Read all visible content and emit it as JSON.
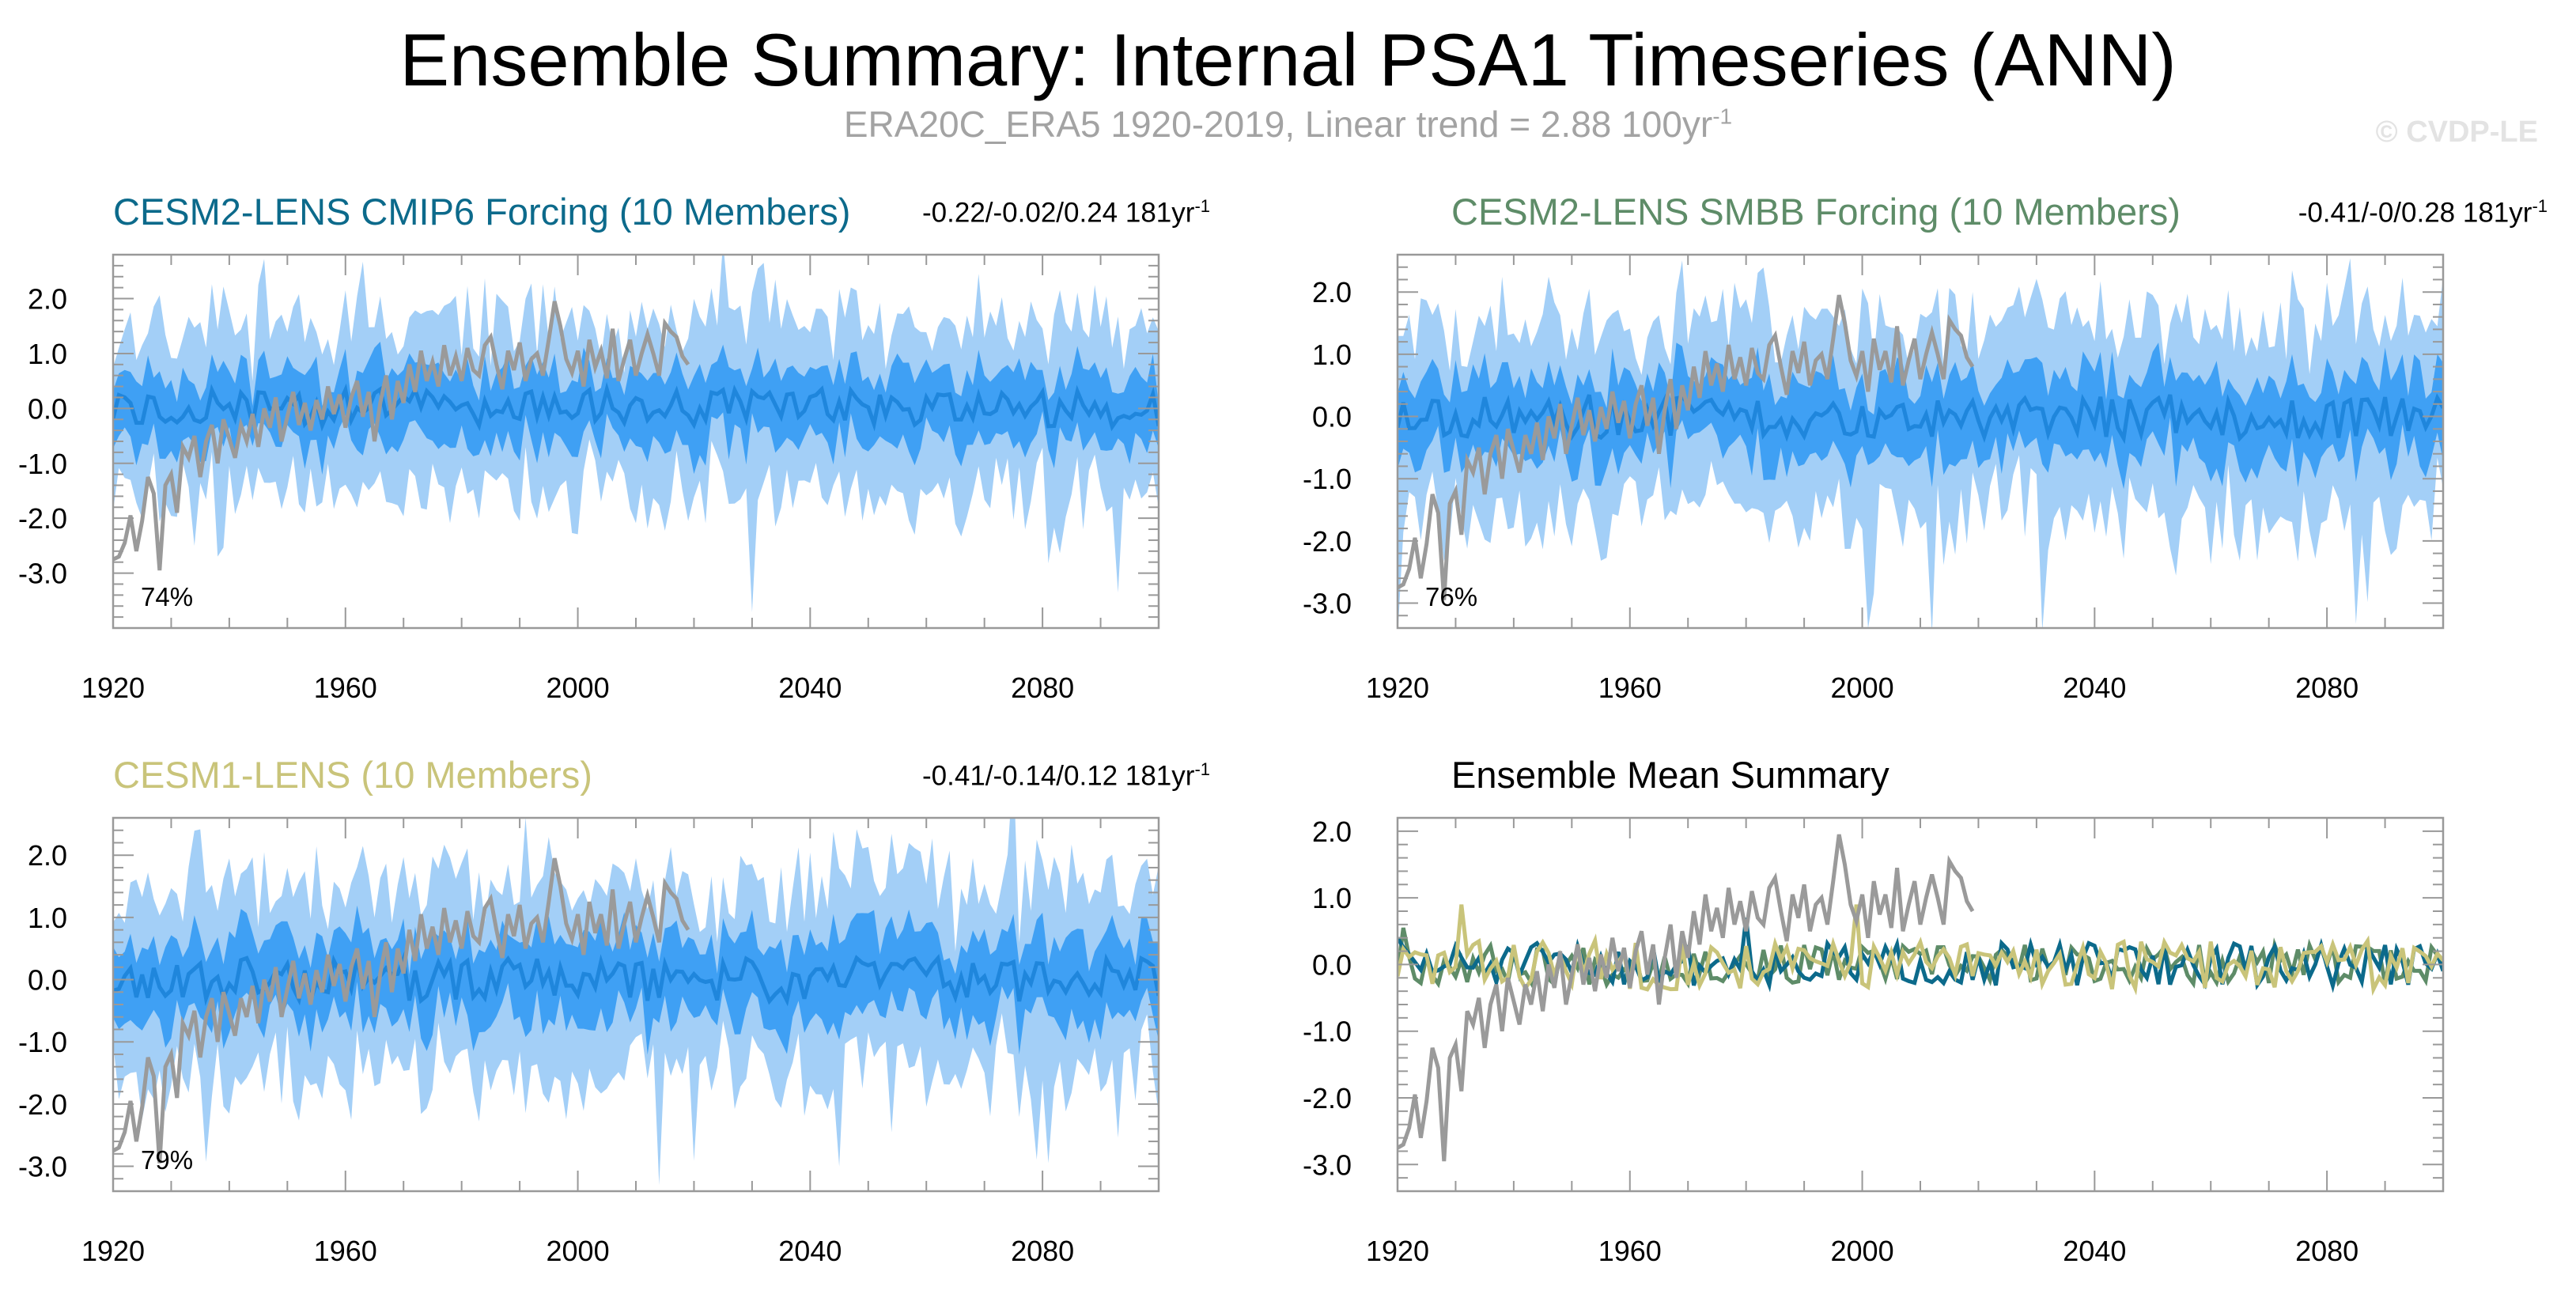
{
  "title": "Ensemble Summary: Internal PSA1 Timeseries (ANN)",
  "subtitle": "ERA20C_ERA5 1920-2019, Linear trend = 2.88 100yr",
  "subtitle_sup": "-1",
  "watermark": "© CVDP-LE",
  "colors": {
    "observation": "#9a9a9a",
    "range_outer": "#a3cff7",
    "range_inner": "#3fa0f4",
    "ensemble_mean": "#1f86dc",
    "cesm2_cmip6": "#0c6a8b",
    "cesm2_smbb": "#5e8c68",
    "cesm1": "#c9c47a"
  },
  "chart_data": [
    {
      "id": "cesm2-cmip6",
      "type": "area",
      "title": "CESM2-LENS CMIP6 Forcing (10 Members)",
      "title_color": "#0c6a8b",
      "stat": "-0.22/-0.02/0.24 181yr",
      "stat_sup": "-1",
      "percent_label": "74%",
      "x_range": [
        1920,
        2100
      ],
      "ylim": [
        -4.0,
        2.8
      ],
      "x_ticks": [
        "1920",
        "1960",
        "2000",
        "2040",
        "2080"
      ],
      "y_ticks": [
        "2.0",
        "1.0",
        "0.0",
        "-1.0",
        "-2.0",
        "-3.0"
      ],
      "series": [
        "range_outer: ensemble min-max envelope",
        "range_inner: 25th-75th percentile",
        "ensemble_mean",
        "observation (1920-2019)"
      ]
    },
    {
      "id": "cesm2-smbb",
      "type": "area",
      "title": "CESM2-LENS SMBB Forcing (10 Members)",
      "title_color": "#5e8c68",
      "stat": "-0.41/-0/0.28 181yr",
      "stat_sup": "-1",
      "percent_label": "76%",
      "x_range": [
        1920,
        2100
      ],
      "ylim": [
        -3.4,
        2.6
      ],
      "x_ticks": [
        "1920",
        "1960",
        "2000",
        "2040",
        "2080"
      ],
      "y_ticks": [
        "2.0",
        "1.0",
        "0.0",
        "-1.0",
        "-2.0",
        "-3.0"
      ],
      "series": [
        "range_outer: ensemble min-max envelope",
        "range_inner: 25th-75th percentile",
        "ensemble_mean",
        "observation (1920-2019)"
      ]
    },
    {
      "id": "cesm1",
      "type": "area",
      "title": "CESM1-LENS (10 Members)",
      "title_color": "#c9c47a",
      "stat": "-0.41/-0.14/0.12 181yr",
      "stat_sup": "-1",
      "percent_label": "79%",
      "x_range": [
        1920,
        2100
      ],
      "ylim": [
        -3.4,
        2.6
      ],
      "x_ticks": [
        "1920",
        "1960",
        "2000",
        "2040",
        "2080"
      ],
      "y_ticks": [
        "2.0",
        "1.0",
        "0.0",
        "-1.0",
        "-2.0",
        "-3.0"
      ],
      "series": [
        "range_outer: ensemble min-max envelope",
        "range_inner: 25th-75th percentile",
        "ensemble_mean",
        "observation (1920-2019)"
      ]
    },
    {
      "id": "ensemble-mean-summary",
      "type": "line",
      "title": "Ensemble Mean Summary",
      "title_color": "#000000",
      "x_range": [
        1920,
        2100
      ],
      "ylim": [
        -3.4,
        2.2
      ],
      "x_ticks": [
        "1920",
        "1960",
        "2000",
        "2040",
        "2080"
      ],
      "y_ticks": [
        "2.0",
        "1.0",
        "0.0",
        "-1.0",
        "-2.0",
        "-3.0"
      ],
      "series": [
        "observation",
        "cesm2_cmip6 ensemble mean",
        "cesm2_smbb ensemble mean",
        "cesm1 ensemble mean"
      ]
    }
  ],
  "observation_series": {
    "start_year": 1920,
    "values": [
      -2.75,
      -2.7,
      -2.45,
      -1.95,
      -2.6,
      -2.05,
      -1.25,
      -1.55,
      -2.95,
      -1.4,
      -1.2,
      -1.9,
      -0.7,
      -0.9,
      -0.5,
      -1.25,
      -0.6,
      -0.3,
      -1.0,
      -0.2,
      -0.55,
      -0.9,
      -0.3,
      -0.6,
      -0.1,
      -0.7,
      0.0,
      -0.35,
      0.2,
      -0.6,
      -0.15,
      0.3,
      -0.3,
      0.1,
      -0.4,
      0.15,
      -0.2,
      0.4,
      -0.1,
      0.25,
      -0.35,
      0.2,
      0.5,
      -0.15,
      0.3,
      -0.6,
      0.1,
      0.6,
      -0.2,
      0.5,
      0.1,
      0.8,
      0.3,
      1.05,
      0.5,
      0.85,
      0.4,
      1.15,
      0.6,
      0.95,
      0.5,
      1.1,
      0.7,
      0.6,
      1.15,
      1.3,
      0.8,
      0.35,
      1.05,
      0.7,
      1.2,
      0.5,
      0.9,
      1.0,
      0.6,
      1.25,
      1.95,
      1.5,
      0.9,
      0.65,
      1.05,
      0.4,
      1.25,
      0.75,
      1.05,
      0.55,
      1.45,
      0.5,
      0.9,
      1.25,
      0.6,
      1.0,
      1.35,
      1.0,
      0.6,
      1.55,
      1.4,
      1.3,
      0.95,
      0.8
    ]
  }
}
